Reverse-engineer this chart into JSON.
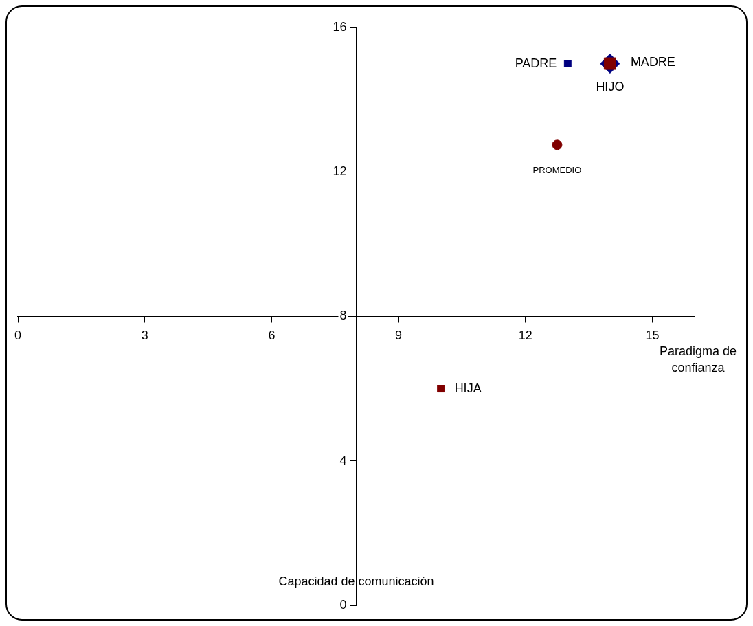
{
  "chart_data": {
    "type": "scatter",
    "xlabel": "Paradigma de confianza",
    "ylabel": "Capacidad de comunicación",
    "xlim": [
      0,
      16
    ],
    "ylim": [
      0,
      16
    ],
    "xticks": [
      0,
      3,
      6,
      9,
      12,
      15
    ],
    "yticks": [
      0,
      4,
      8,
      12,
      16
    ],
    "grid": false,
    "series": [
      {
        "name": "PADRE",
        "color": "#000080",
        "marker": "square",
        "x": [
          13
        ],
        "values": [
          15
        ]
      },
      {
        "name": "MADRE",
        "color": "#800000",
        "marker": "square",
        "x": [
          14
        ],
        "values": [
          15
        ]
      },
      {
        "name": "HIJO",
        "color": "#000080",
        "marker": "diamond",
        "x": [
          14
        ],
        "values": [
          15
        ]
      },
      {
        "name": "HIJA",
        "color": "#800000",
        "marker": "square",
        "x": [
          10
        ],
        "values": [
          6
        ]
      },
      {
        "name": "PROMEDIO",
        "color": "#800000",
        "marker": "circle",
        "x": [
          12.75
        ],
        "values": [
          12.75
        ]
      }
    ]
  }
}
